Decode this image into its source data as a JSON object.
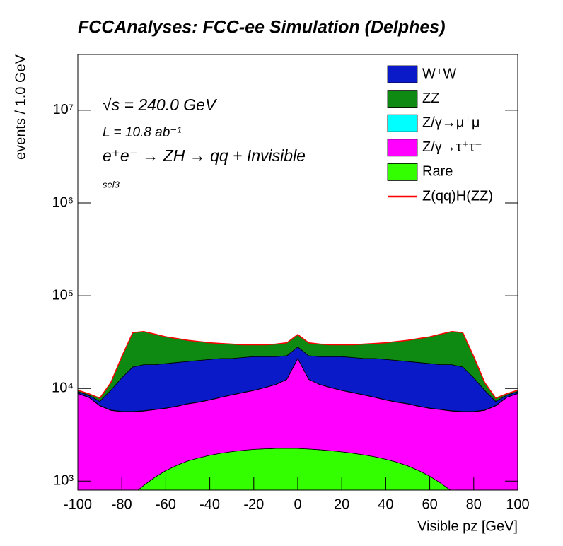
{
  "chart_data": {
    "type": "stacked_area",
    "title": "FCCAnalyses: FCC-ee Simulation (Delphes)",
    "annotations": [
      "√s = 240.0 GeV",
      "L = 10.8 ab⁻¹",
      "e⁺e⁻ → ZH → qq + Invisible",
      "sel3"
    ],
    "xlabel": "Visible pz [GeV]",
    "ylabel": "events / 1.0 GeV",
    "logy": true,
    "legend": "upper right",
    "xlim": [
      -100,
      100
    ],
    "xticks": [
      -100,
      -80,
      -60,
      -40,
      -20,
      0,
      20,
      40,
      60,
      80,
      100
    ],
    "ylim": [
      800,
      40000000
    ],
    "yticks": [
      {
        "value": 1000,
        "label": "10³"
      },
      {
        "value": 10000,
        "label": "10⁴"
      },
      {
        "value": 100000,
        "label": "10⁵"
      },
      {
        "value": 1000000,
        "label": "10⁶"
      },
      {
        "value": 10000000,
        "label": "10⁷"
      }
    ],
    "x": [
      -100,
      -95,
      -90,
      -85,
      -80,
      -75,
      -70,
      -65,
      -60,
      -55,
      -50,
      -45,
      -40,
      -35,
      -30,
      -25,
      -20,
      -15,
      -10,
      -5,
      0,
      5,
      10,
      15,
      20,
      25,
      30,
      35,
      40,
      45,
      50,
      55,
      60,
      65,
      70,
      75,
      80,
      85,
      90,
      95,
      100
    ],
    "series": [
      {
        "name": "W⁺W⁻",
        "color": "#0a1ac8",
        "values": [
          400,
          400,
          700,
          3700,
          7400,
          11400,
          12300,
          12100,
          12400,
          12600,
          12700,
          12900,
          13000,
          13000,
          12500,
          12500,
          12500,
          11800,
          11000,
          10000,
          7000,
          10000,
          11000,
          11800,
          12500,
          12500,
          12500,
          13000,
          13000,
          12900,
          12700,
          12600,
          12400,
          12100,
          12300,
          11400,
          7400,
          3700,
          700,
          400,
          400
        ]
      },
      {
        "name": "ZZ",
        "color": "#0e8a12",
        "values": [
          300,
          300,
          600,
          2000,
          9000,
          23000,
          23000,
          20500,
          17500,
          15500,
          13500,
          12000,
          10500,
          9500,
          9000,
          8000,
          7500,
          7500,
          8000,
          8500,
          10000,
          8500,
          8000,
          7500,
          7500,
          8000,
          9000,
          9500,
          10500,
          12000,
          13500,
          15500,
          17500,
          20500,
          23000,
          23000,
          9000,
          2000,
          600,
          300,
          300
        ]
      },
      {
        "name": "Z/γ→μ⁺μ⁻",
        "color": "#00ffff",
        "values": [
          40,
          40,
          40,
          40,
          40,
          40,
          40,
          40,
          40,
          40,
          40,
          40,
          40,
          40,
          40,
          40,
          40,
          40,
          40,
          40,
          40,
          40,
          40,
          40,
          40,
          40,
          40,
          40,
          40,
          40,
          40,
          40,
          40,
          40,
          40,
          40,
          40,
          40,
          40,
          40,
          40
        ]
      },
      {
        "name": "Z/γ→τ⁺τ⁻",
        "color": "#ff00ff",
        "values": [
          8600,
          7750,
          6180,
          5380,
          5040,
          4880,
          4800,
          4800,
          4800,
          4920,
          5150,
          5320,
          5600,
          6000,
          6420,
          6850,
          7300,
          7970,
          8750,
          10240,
          18750,
          10280,
          8820,
          8070,
          7430,
          7000,
          6580,
          6170,
          5780,
          5500,
          5340,
          5100,
          4970,
          4950,
          4920,
          4980,
          5120,
          5440,
          6230,
          7800,
          8650
        ]
      },
      {
        "name": "Rare",
        "color": "#33ff00",
        "values": [
          200,
          250,
          320,
          420,
          560,
          720,
          900,
          1100,
          1300,
          1480,
          1650,
          1780,
          1900,
          2000,
          2080,
          2150,
          2200,
          2230,
          2250,
          2260,
          2250,
          2220,
          2180,
          2130,
          2070,
          2000,
          1920,
          1830,
          1720,
          1600,
          1460,
          1300,
          1130,
          950,
          780,
          620,
          480,
          360,
          270,
          200,
          150
        ]
      },
      {
        "name": "Z(qq)H(ZZ)",
        "color": "#ff0000",
        "style": "line",
        "values": [
          20,
          20,
          20,
          20,
          20,
          20,
          20,
          20,
          20,
          20,
          20,
          20,
          20,
          20,
          20,
          20,
          20,
          20,
          20,
          20,
          20,
          20,
          20,
          20,
          20,
          20,
          20,
          20,
          20,
          20,
          20,
          20,
          20,
          20,
          20,
          20,
          20,
          20,
          20,
          20,
          20
        ]
      }
    ]
  }
}
